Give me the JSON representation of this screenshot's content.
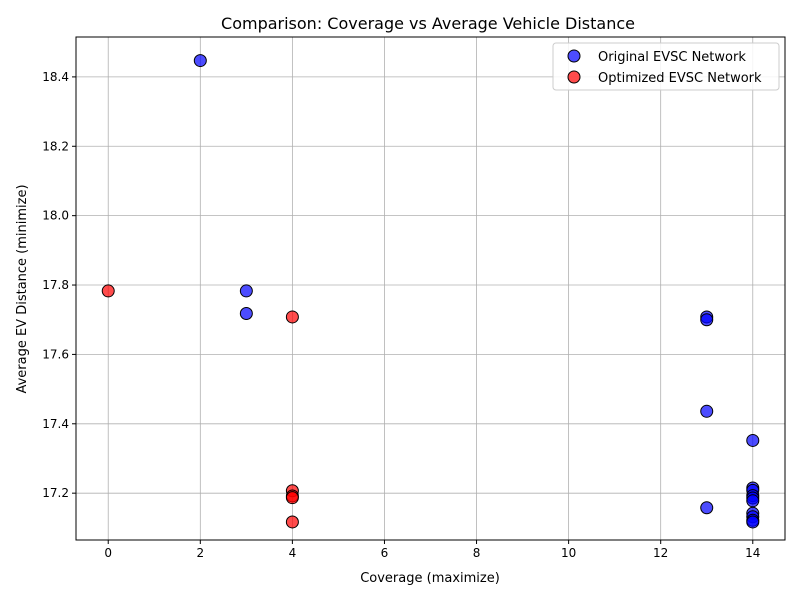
{
  "chart_data": {
    "type": "scatter",
    "title": "Comparison: Coverage vs Average Vehicle Distance",
    "xlabel": "Coverage (maximize)",
    "ylabel": "Average EV Distance (minimize)",
    "xlim": [
      -0.7,
      14.7
    ],
    "ylim": [
      17.065,
      18.515
    ],
    "xticks": [
      0,
      2,
      4,
      6,
      8,
      10,
      12,
      14
    ],
    "yticks": [
      17.2,
      17.4,
      17.6,
      17.8,
      18.0,
      18.2,
      18.4
    ],
    "xtick_labels": [
      "0",
      "2",
      "4",
      "6",
      "8",
      "10",
      "12",
      "14"
    ],
    "ytick_labels": [
      "17.2",
      "17.4",
      "17.6",
      "17.8",
      "18.0",
      "18.2",
      "18.4"
    ],
    "grid": true,
    "legend_position": "top-right",
    "series": [
      {
        "name": "Original EVSC Network",
        "color": "#0000ff",
        "points": [
          {
            "x": 2,
            "y": 18.447
          },
          {
            "x": 3,
            "y": 17.783
          },
          {
            "x": 3,
            "y": 17.718
          },
          {
            "x": 13,
            "y": 17.708
          },
          {
            "x": 13,
            "y": 17.7
          },
          {
            "x": 13,
            "y": 17.436
          },
          {
            "x": 14,
            "y": 17.352
          },
          {
            "x": 14,
            "y": 17.215
          },
          {
            "x": 14,
            "y": 17.208
          },
          {
            "x": 14,
            "y": 17.193
          },
          {
            "x": 14,
            "y": 17.186
          },
          {
            "x": 14,
            "y": 17.178
          },
          {
            "x": 13,
            "y": 17.158
          },
          {
            "x": 14,
            "y": 17.142
          },
          {
            "x": 14,
            "y": 17.132
          },
          {
            "x": 14,
            "y": 17.122
          },
          {
            "x": 14,
            "y": 17.117
          }
        ]
      },
      {
        "name": "Optimized EVSC Network",
        "color": "#ff0000",
        "points": [
          {
            "x": 0,
            "y": 17.783
          },
          {
            "x": 4,
            "y": 17.708
          },
          {
            "x": 4,
            "y": 17.207
          },
          {
            "x": 4,
            "y": 17.192
          },
          {
            "x": 4,
            "y": 17.187
          },
          {
            "x": 4,
            "y": 17.117
          }
        ]
      }
    ]
  }
}
